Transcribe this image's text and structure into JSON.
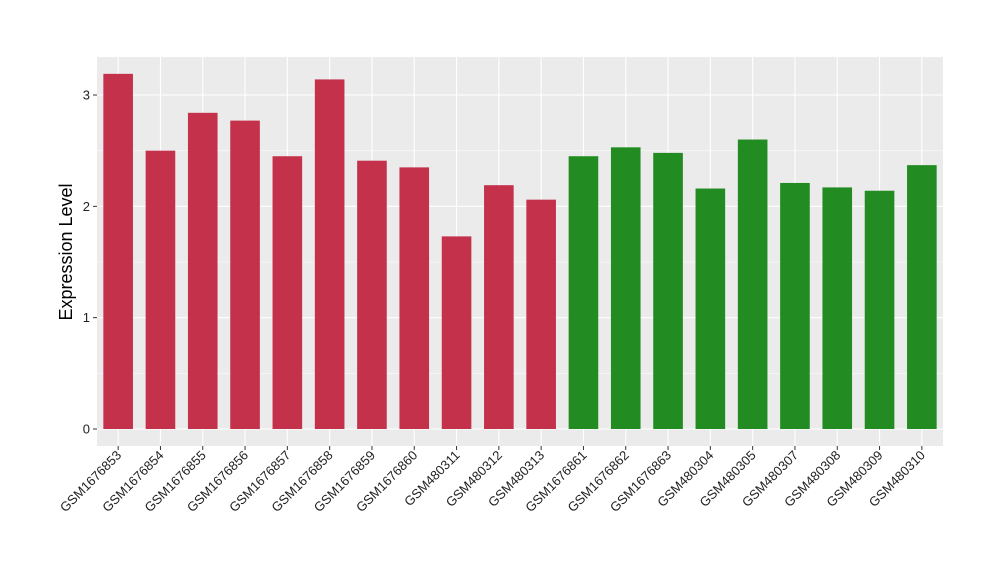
{
  "chart_data": {
    "type": "bar",
    "title": "",
    "xlabel": "",
    "ylabel": "Expression Level",
    "ylim": [
      0,
      3.25
    ],
    "yticks": [
      0,
      1,
      2,
      3
    ],
    "grid": true,
    "legend": "none",
    "colors": {
      "group1": "#c4314b",
      "group2": "#228b22",
      "panel": "#ebebeb",
      "gridline": "#ffffff"
    },
    "categories": [
      "GSM1676853",
      "GSM1676854",
      "GSM1676855",
      "GSM1676856",
      "GSM1676857",
      "GSM1676858",
      "GSM1676859",
      "GSM1676860",
      "GSM480311",
      "GSM480312",
      "GSM480313",
      "GSM1676861",
      "GSM1676862",
      "GSM1676863",
      "GSM480304",
      "GSM480305",
      "GSM480307",
      "GSM480308",
      "GSM480309",
      "GSM480310"
    ],
    "values": [
      3.19,
      2.5,
      2.84,
      2.77,
      2.45,
      3.14,
      2.41,
      2.35,
      1.73,
      2.19,
      2.06,
      2.45,
      2.53,
      2.48,
      2.16,
      2.6,
      2.21,
      2.17,
      2.14,
      2.37
    ],
    "bar_groups": [
      "group1",
      "group1",
      "group1",
      "group1",
      "group1",
      "group1",
      "group1",
      "group1",
      "group1",
      "group1",
      "group1",
      "group2",
      "group2",
      "group2",
      "group2",
      "group2",
      "group2",
      "group2",
      "group2",
      "group2"
    ]
  }
}
